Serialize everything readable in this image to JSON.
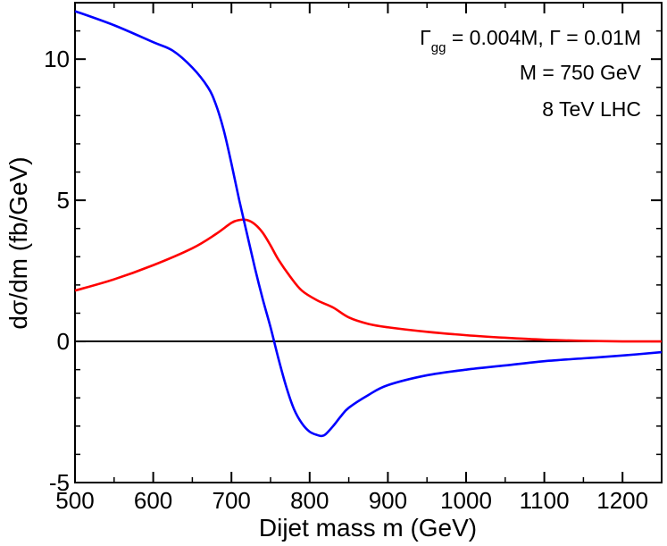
{
  "chart_data": {
    "type": "line",
    "xlabel": "Dijet mass m  (GeV)",
    "ylabel": "dσ/dm   (fb/GeV)",
    "xlim": [
      500,
      1250
    ],
    "ylim": [
      -5,
      12
    ],
    "x_ticks": [
      500,
      600,
      700,
      800,
      900,
      1000,
      1100,
      1200
    ],
    "y_ticks": [
      -5,
      0,
      5,
      10
    ],
    "x_tick_labels": [
      "500",
      "600",
      "700",
      "800",
      "900",
      "1000",
      "1100",
      "1200"
    ],
    "y_tick_labels": [
      "-5",
      "0",
      "5",
      "10"
    ],
    "annotations": {
      "gamma_symbol": "Γ",
      "gamma_subscript": "gg",
      "gamma_gg_value": " = 0.004M,  ",
      "gamma_total": "Γ = 0.01M",
      "mass": "M = 750 GeV",
      "collider": "8 TeV LHC"
    },
    "series": [
      {
        "name": "blue curve",
        "color": "#0000ff",
        "points": [
          [
            500,
            11.7
          ],
          [
            550,
            11.2
          ],
          [
            600,
            10.6
          ],
          [
            625,
            10.3
          ],
          [
            650,
            9.7
          ],
          [
            670,
            9.0
          ],
          [
            680,
            8.4
          ],
          [
            690,
            7.5
          ],
          [
            700,
            6.3
          ],
          [
            710,
            5.0
          ],
          [
            720,
            3.8
          ],
          [
            730,
            2.6
          ],
          [
            740,
            1.5
          ],
          [
            750,
            0.5
          ],
          [
            760,
            -0.6
          ],
          [
            770,
            -1.6
          ],
          [
            780,
            -2.4
          ],
          [
            790,
            -2.9
          ],
          [
            800,
            -3.2
          ],
          [
            810,
            -3.32
          ],
          [
            815,
            -3.35
          ],
          [
            820,
            -3.3
          ],
          [
            830,
            -3.0
          ],
          [
            840,
            -2.65
          ],
          [
            850,
            -2.35
          ],
          [
            875,
            -1.9
          ],
          [
            900,
            -1.55
          ],
          [
            950,
            -1.2
          ],
          [
            1000,
            -1.0
          ],
          [
            1050,
            -0.85
          ],
          [
            1100,
            -0.7
          ],
          [
            1150,
            -0.6
          ],
          [
            1200,
            -0.5
          ],
          [
            1250,
            -0.38
          ]
        ]
      },
      {
        "name": "red curve",
        "color": "#ff0000",
        "points": [
          [
            500,
            1.8
          ],
          [
            550,
            2.2
          ],
          [
            600,
            2.7
          ],
          [
            650,
            3.3
          ],
          [
            680,
            3.8
          ],
          [
            700,
            4.2
          ],
          [
            710,
            4.3
          ],
          [
            720,
            4.3
          ],
          [
            730,
            4.15
          ],
          [
            740,
            3.85
          ],
          [
            750,
            3.4
          ],
          [
            760,
            2.9
          ],
          [
            775,
            2.3
          ],
          [
            790,
            1.8
          ],
          [
            810,
            1.45
          ],
          [
            830,
            1.2
          ],
          [
            850,
            0.85
          ],
          [
            875,
            0.62
          ],
          [
            900,
            0.5
          ],
          [
            950,
            0.34
          ],
          [
            1000,
            0.22
          ],
          [
            1050,
            0.13
          ],
          [
            1100,
            0.06
          ],
          [
            1150,
            0.02
          ],
          [
            1200,
            0.0
          ],
          [
            1250,
            0.0
          ]
        ]
      },
      {
        "name": "zero line",
        "color": "#000000",
        "points": [
          [
            500,
            0
          ],
          [
            1250,
            0
          ]
        ]
      }
    ]
  }
}
